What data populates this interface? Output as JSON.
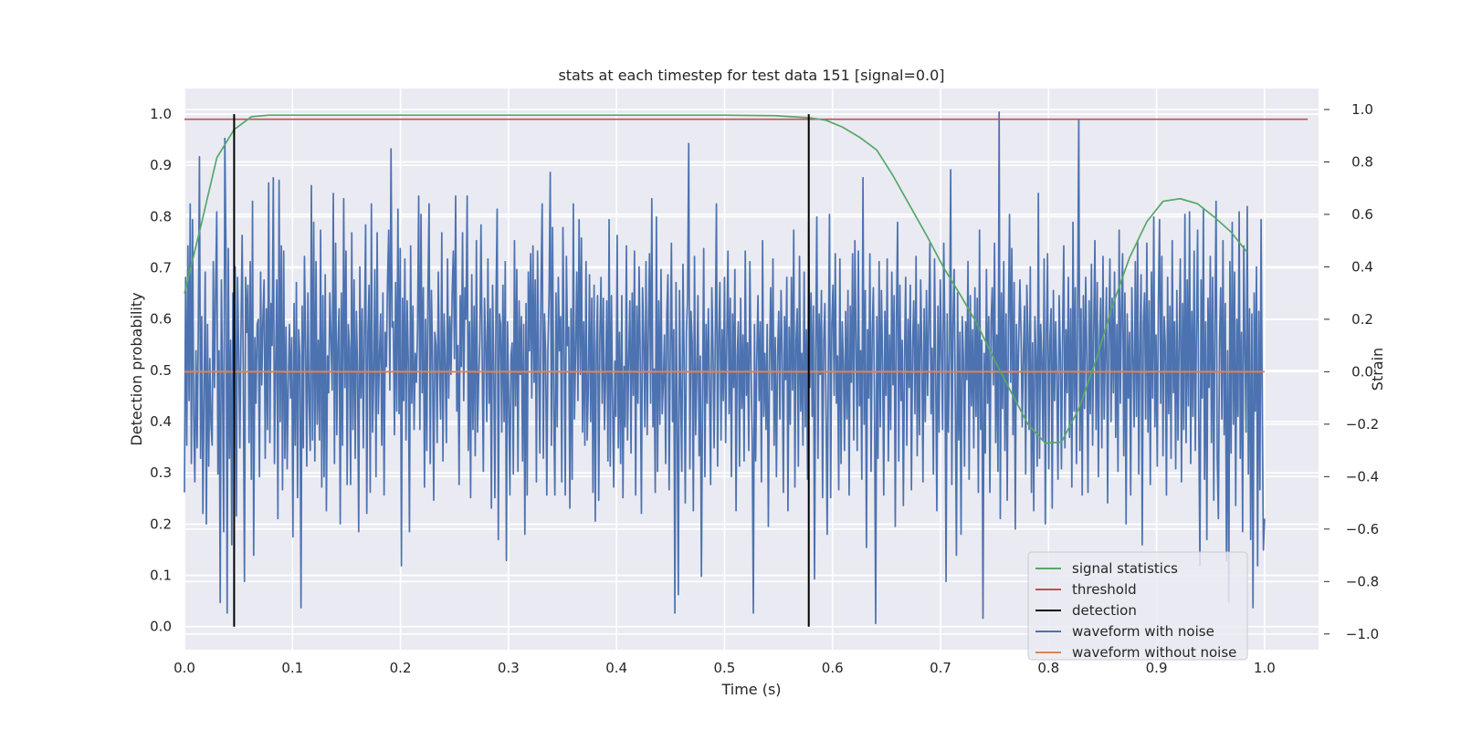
{
  "chart_data": {
    "type": "line",
    "title": "stats at each timestep for test data 151 [signal=0.0]",
    "xlabel": "Time (s)",
    "ylabel": "Detection probability",
    "y2label": "Strain",
    "xlim": [
      0.0,
      1.05
    ],
    "ylim": [
      -0.045,
      1.05
    ],
    "y2lim": [
      -1.06,
      1.08
    ],
    "xticks": [
      "0.0",
      "0.1",
      "0.2",
      "0.3",
      "0.4",
      "0.5",
      "0.6",
      "0.7",
      "0.8",
      "0.9",
      "1.0"
    ],
    "yticks": [
      "0.0",
      "0.1",
      "0.2",
      "0.3",
      "0.4",
      "0.5",
      "0.6",
      "0.7",
      "0.8",
      "0.9",
      "1.0"
    ],
    "y2ticks": [
      "−1.0",
      "−0.8",
      "−0.6",
      "−0.4",
      "−0.2",
      "0.0",
      "0.2",
      "0.4",
      "0.6",
      "0.8",
      "1.0"
    ],
    "grid": true,
    "legend_position": "lower-right",
    "colors": {
      "signal": "#55a868",
      "threshold": "#c44e52",
      "detection": "#000000",
      "noisy": "#4c72b0",
      "clean": "#dd8452",
      "plot_bg": "#eaeaf2",
      "grid": "#ffffff"
    },
    "legend": [
      {
        "label": "signal statistics",
        "color": "#55a868"
      },
      {
        "label": "threshold",
        "color": "#c44e52"
      },
      {
        "label": "detection",
        "color": "#000000"
      },
      {
        "label": "waveform with noise",
        "color": "#4c72b0"
      },
      {
        "label": "waveform without noise",
        "color": "#dd8452"
      }
    ],
    "series": [
      {
        "name": "signal statistics",
        "axis": "left",
        "x": [
          0.0,
          0.015,
          0.03,
          0.046,
          0.062,
          0.078,
          0.1,
          0.2,
          0.3,
          0.4,
          0.5,
          0.547,
          0.562,
          0.578,
          0.594,
          0.609,
          0.625,
          0.641,
          0.656,
          0.672,
          0.688,
          0.703,
          0.719,
          0.734,
          0.75,
          0.766,
          0.781,
          0.797,
          0.812,
          0.828,
          0.844,
          0.859,
          0.875,
          0.891,
          0.906,
          0.922,
          0.938,
          0.953,
          0.969,
          0.984
        ],
        "values": [
          0.65,
          0.78,
          0.915,
          0.97,
          0.995,
          0.998,
          0.998,
          0.998,
          0.998,
          0.998,
          0.998,
          0.997,
          0.995,
          0.993,
          0.988,
          0.975,
          0.955,
          0.93,
          0.88,
          0.82,
          0.76,
          0.7,
          0.645,
          0.59,
          0.52,
          0.455,
          0.395,
          0.358,
          0.36,
          0.425,
          0.52,
          0.625,
          0.72,
          0.79,
          0.83,
          0.835,
          0.825,
          0.8,
          0.77,
          0.73
        ]
      },
      {
        "name": "threshold",
        "axis": "left",
        "x": [
          0.0,
          1.04
        ],
        "values": [
          0.99,
          0.99
        ]
      },
      {
        "name": "detection",
        "axis": "left",
        "segments": [
          [
            0.046,
            0.0,
            1.0
          ],
          [
            0.578,
            0.0,
            1.0
          ]
        ]
      },
      {
        "name": "waveform with noise",
        "axis": "right",
        "x_start": 0.0,
        "x_end": 1.0,
        "values": [
          -0.46,
          0.36,
          -0.28,
          0.48,
          -0.11,
          0.64,
          -0.35,
          0.58,
          -0.16,
          -0.42,
          0.08,
          -0.29,
          0.15,
          0.82,
          -0.33,
          0.21,
          -0.54,
          -0.09,
          0.38,
          -0.58,
          0.18,
          -0.36,
          0.05,
          -0.2,
          -0.28,
          0.42,
          -0.06,
          0.31,
          0.61,
          -0.39,
          0.08,
          -0.88,
          0.35,
          -0.04,
          -0.61,
          0.89,
          0.46,
          -0.92,
          0.47,
          -0.33,
          0.12,
          -0.66,
          0.3,
          0.06,
          0.4,
          -0.55,
          0.36,
          0.08,
          -0.29,
          0.15,
          0.52,
          -0.01,
          -0.8,
          0.36,
          0.15,
          0.33,
          -0.27,
          0.42,
          -0.41,
          0.65,
          -0.7,
          0.13,
          -0.12,
          0.18,
          0.2,
          -0.4,
          0.38,
          -0.05,
          0.2,
          0.35,
          -0.33,
          0.24,
          -0.22,
          0.72,
          -0.27,
          0.26,
          0.1,
          0.74,
          -0.35,
          0.02,
          0.35,
          -0.56,
          0.73,
          -0.19,
          0.48,
          -0.45,
          0.46,
          -0.33,
          0.17,
          -0.37,
          -0.04,
          0.18,
          -0.1,
          0.13,
          -0.63,
          0.26,
          -0.28,
          0.34,
          -0.48,
          0.16,
          0.06,
          -0.9,
          0.25,
          -0.29,
          0.44,
          0.11,
          -0.36,
          0.3,
          -0.12,
          -0.3,
          0.71,
          -0.26,
          0.57,
          -0.34,
          0.42,
          -0.2,
          0.12,
          -0.26,
          0.54,
          -0.44,
          0.29,
          -0.4,
          0.37,
          -0.53,
          0.06,
          -0.08,
          0.3,
          0.12,
          -0.07,
          0.68,
          -0.35,
          0.49,
          -0.24,
          0.1,
          0.24,
          -0.58,
          0.3,
          -0.28,
          0.66,
          -0.06,
          0.46,
          -0.43,
          0.18,
          0.09,
          -0.43,
          0.53,
          -0.22,
          0.35,
          -0.33,
          0.23,
          0.01,
          -0.61,
          0.4,
          -0.1,
          0.24,
          -0.29,
          0.16,
          0.56,
          -0.54,
          0.15,
          0.33,
          -0.46,
          0.64,
          -0.23,
          -0.02,
          0.39,
          -0.4,
          0.53,
          -0.16,
          0.06,
          0.22,
          -0.28,
          0.3,
          -0.47,
          0.15,
          0.02,
          0.35,
          0.54,
          -0.07,
          0.85,
          0.17,
          0.19,
          -0.24,
          0.34,
          -0.15,
          0.62,
          -0.16,
          0.47,
          -0.74,
          0.28,
          -0.11,
          0.43,
          -0.26,
          0.27,
          0.04,
          -0.61,
          0.48,
          -0.12,
          0.25,
          -0.22,
          0.07,
          -0.04,
          0.16,
          0.67,
          -0.22,
          0.6,
          -0.08,
          0.32,
          -0.44,
          0.2,
          -0.3,
          0.3,
          0.64,
          -0.35,
          0.31,
          0.06,
          -0.49,
          0.15,
          0.1,
          -0.27,
          0.38,
          0.02,
          -0.18,
          0.53,
          -0.34,
          0.22,
          0.03,
          -0.27,
          0.43,
          -0.1,
          0.21,
          -0.01,
          0.3,
          0.46,
          0.05,
          0.67,
          -0.15,
          0.1,
          -0.43,
          0.29,
          0.02,
          0.53,
          -0.11,
          0.32,
          0.2,
          0.67,
          -0.3,
          0.19,
          -0.48,
          0.37,
          -0.22,
          0.25,
          -0.32,
          0.5,
          -0.23,
          -0.02,
          0.12,
          0.56,
          0.06,
          -0.38,
          0.28,
          0.11,
          -0.19,
          0.43,
          -0.12,
          0.24,
          -0.52,
          0.33,
          0.04,
          -0.48,
          0.27,
          0.62,
          -0.64,
          0.22,
          0.18,
          -0.23,
          0.33,
          -0.19,
          0.42,
          -0.72,
          0.19,
          -0.1,
          -0.47,
          0.06,
          0.11,
          -0.39,
          0.5,
          -0.13,
          0.39,
          -0.38,
          0.27,
          -0.01,
          0.21,
          -0.34,
          0.18,
          -0.62,
          0.26,
          -0.47,
          0.38,
          0.08,
          0.45,
          -0.1,
          0.48,
          -0.04,
          0.35,
          -0.42,
          0.46,
          0.02,
          -0.31,
          0.34,
          0.64,
          -0.33,
          0.22,
          0.07,
          -0.47,
          0.09,
          0.3,
          0.76,
          -0.28,
          0.55,
          -0.14,
          -0.47,
          0.3,
          -0.21,
          0.36,
          0.08,
          0.21,
          -0.42,
          0.55,
          0.09,
          -0.47,
          0.44,
          0.1,
          0.17,
          -0.52,
          0.24,
          -0.41,
          0.64,
          -0.18,
          0.08,
          0.38,
          -0.11,
          0.58,
          -0.01,
          0.51,
          -0.23,
          0.19,
          -0.28,
          0.42,
          -0.26,
          -0.06,
          0.37,
          -0.19,
          0.28,
          -0.46,
          0.33,
          -0.57,
          0.09,
          0.29,
          -0.49,
          0.13,
          0.36,
          -0.12,
          0.28,
          -0.22,
          -0.02,
          0.27,
          -0.34,
          0.58,
          -0.36,
          0.29,
          -0.11,
          -0.44,
          0.04,
          -0.17,
          0.52,
          -0.29,
          0.15,
          -0.35,
          0.29,
          -0.48,
          0.02,
          -0.21,
          0.48,
          -0.26,
          0.05,
          0.27,
          -0.31,
          0.3,
          -0.09,
          0.46,
          -0.47,
          0.25,
          -0.12,
          0.4,
          0.04,
          -0.54,
          0.32,
          0.13,
          -0.21,
          0.42,
          -0.24,
          0.15,
          0.45,
          -0.12,
          0.66,
          -0.21,
          0.01,
          -0.46,
          0.59,
          -0.38,
          0.27,
          -0.2,
          0.39,
          -0.16,
          -0.04,
          0.14,
          -0.35,
          0.22,
          0.37,
          -0.45,
          0.06,
          0.49,
          -0.19,
          0.16,
          -0.92,
          0.34,
          -0.18,
          -0.85,
          0.31,
          -0.08,
          -0.38,
          0.41,
          0.05,
          -0.5,
          0.15,
          0.28,
          0.87,
          -0.37,
          0.23,
          0.11,
          -0.53,
          0.44,
          -0.24,
          -0.02,
          0.29,
          -0.32,
          0.06,
          -0.78,
          -0.07,
          0.47,
          -0.4,
          0.18,
          -0.12,
          0.24,
          -0.05,
          -0.43,
          0.32,
          0.09,
          -0.29,
          0.12,
          0.64,
          -0.36,
          0.13,
          0.34,
          -0.26,
          0.16,
          -0.11,
          0.36,
          -0.27,
          0.13,
          0.46,
          -0.16,
          0.28,
          -0.4,
          0.22,
          -0.06,
          0.39,
          -0.53,
          0.06,
          0.19,
          -0.36,
          0.28,
          -0.14,
          0.14,
          -0.34,
          0.46,
          -0.09,
          0.11,
          -0.3,
          0.42,
          0.02,
          -0.25,
          -0.92,
          0.18,
          -0.34,
          0.05,
          0.29,
          -0.11,
          0.19,
          -0.42,
          0.5,
          -0.17,
          0.07,
          -0.22,
          0.18,
          -0.59,
          0.03,
          0.32,
          -0.07,
          0.43,
          -0.28,
          0.13,
          -0.4,
          0.06,
          0.23,
          -0.18,
          0.31,
          0.06,
          -0.46,
          0.21,
          -0.03,
          0.36,
          -0.53,
          0.17,
          -0.2,
          0.36,
          -0.07,
          0.54,
          -0.44,
          0.12,
          0.24,
          -0.36,
          0.44,
          -0.15,
          0.07,
          -0.28,
          0.38,
          -0.21,
          0.16,
          -0.41,
          0.57,
          -0.06,
          0.3,
          -0.17,
          0.25,
          -0.79,
          0.08,
          0.59,
          -0.33,
          0.22,
          -0.01,
          0.31,
          -0.48,
          0.12,
          0.26,
          -0.15,
          -0.62,
          0.04,
          0.6,
          -0.48,
          0.18,
          0.33,
          -0.09,
          0.45,
          -0.12,
          0.06,
          -0.45,
          0.43,
          -0.35,
          0.19,
          0.04,
          -0.3,
          0.23,
          -0.18,
          0.31,
          -0.47,
          0.25,
          -0.04,
          0.45,
          -0.26,
          0.5,
          0.12,
          -0.3,
          0.46,
          -0.13,
          0.08,
          -0.41,
          0.74,
          -0.2,
          0.31,
          -0.67,
          0.16,
          -0.1,
          0.45,
          -0.38,
          0.15,
          0.32,
          -0.12,
          -0.96,
          0.21,
          -0.33,
          0.42,
          -0.21,
          0.31,
          0.04,
          -0.47,
          0.23,
          -0.09,
          0.43,
          -0.34,
          0.14,
          -0.22,
          0.38,
          -0.05,
          0.29,
          -0.59,
          0.2,
          0.57,
          -0.34,
          0.33,
          -0.11,
          0.12,
          -0.51,
          0.05,
          0.36,
          -0.28,
          0.2,
          -0.06,
          0.33,
          -0.45,
          0.1,
          0.27,
          -0.16,
          0.44,
          -0.32,
          0.18,
          -0.24,
          0.35,
          0.07,
          -0.42,
          0.24,
          -0.19,
          0.31,
          -0.09,
          0.19,
          0.49,
          -0.16,
          0.09,
          -0.39,
          0.43,
          0.02,
          -0.53,
          0.25,
          -0.23,
          0.35,
          0.08,
          -0.22,
          0.49,
          0.14,
          -0.8,
          0.22,
          -0.23,
          0.08,
          0.77,
          -0.43,
          0.18,
          0.39,
          -0.11,
          -0.7,
          0.3,
          -0.26,
          0.15,
          -0.62,
          0.21,
          0.06,
          -0.36,
          0.19,
          -0.03,
          0.42,
          -0.41,
          0.29,
          -0.13,
          0.16,
          -0.29,
          0.32,
          -0.17,
          0.28,
          -0.46,
          0.54,
          -0.22,
          0.12,
          -0.94,
          0.07,
          -0.31,
          0.39,
          -0.12,
          0.21,
          -0.46,
          0.19,
          0.32,
          -0.05,
          0.49,
          -0.27,
          0.14,
          -0.38,
          0.99,
          -0.56,
          0.3,
          -0.14,
          0.42,
          -0.3,
          0.22,
          -0.49,
          0.16,
          0.6,
          -0.04,
          0.47,
          -0.24,
          0.34,
          -0.6,
          0.18,
          -0.12,
          0.12,
          0.35,
          0.14,
          -0.21,
          0.07,
          0.25,
          -0.39,
          0.33,
          0.14,
          -0.22,
          0.4,
          -0.46,
          0.11,
          -0.53,
          0.21,
          0.05,
          -0.36,
          0.68,
          -0.33,
          0.18,
          0.05,
          -0.26,
          0.43,
          -0.58,
          0.16,
          0.45,
          -0.37,
          0.12,
          0.24,
          -0.52,
          0.31,
          -0.11,
          0.19,
          -0.03,
          -0.41,
          0.29,
          0.07,
          -0.37,
          0.15,
          0.48,
          -0.29,
          0.16,
          -0.08,
          0.36,
          -0.25,
          0.24,
          -0.44,
          0.57,
          -0.15,
          0.32,
          -0.35,
          0.22,
          0.96,
          -0.3,
          0.24,
          -0.47,
          0.29,
          -0.14,
          0.36,
          0.05,
          -0.46,
          0.27,
          -0.16,
          0.41,
          -0.28,
          0.17,
          0.5,
          -0.22,
          0.34,
          -0.4,
          0.12,
          0.28,
          -0.29,
          0.44,
          -0.18,
          0.08,
          0.32,
          -0.5,
          0.12,
          0.43,
          -0.19,
          0.28,
          -0.08,
          0.38,
          -0.25,
          0.18,
          -0.38,
          0.54,
          -0.12,
          0.24,
          0.45,
          -0.32,
          0.3,
          -0.58,
          0.22,
          -0.1,
          0.15,
          -0.47,
          0.32,
          0.05,
          -0.21,
          0.42,
          -0.17,
          0.5,
          -0.39,
          0.11,
          0.37,
          -0.66,
          0.19,
          0.3,
          -0.18,
          0.49,
          -0.23,
          0.27,
          -0.43,
          0.38,
          -0.1,
          0.59,
          -0.21,
          0.14,
          -0.36,
          0.27,
          0.58,
          -0.12,
          0.44,
          -0.32,
          0.21,
          0.1,
          -0.47,
          0.36,
          -0.16,
          0.25,
          -0.33,
          0.5,
          -0.08,
          0.19,
          -0.37,
          0.31,
          -0.26,
          0.12,
          0.43,
          -0.42,
          0.26,
          -0.22,
          0.6,
          -0.27,
          0.35,
          -0.13,
          0.61,
          -0.35,
          0.23,
          -0.17,
          0.46,
          -0.3,
          0.16,
          0.54,
          -0.2,
          -0.74,
          0.35,
          -0.1,
          0.62,
          -0.41,
          0.19,
          -0.64,
          0.28,
          -0.06,
          0.44,
          -0.27,
          0.36,
          -0.49,
          0.2,
          0.65,
          -0.33,
          -0.56,
          0.12,
          0.32,
          -0.18,
          0.5,
          -0.24,
          0.26,
          -0.72,
          0.08,
          -0.88,
          0.42,
          -0.31,
          0.57,
          -0.2,
          0.38,
          -0.51,
          0.2,
          -0.17,
          0.61,
          -0.33,
          0.15,
          -0.61,
          0.48,
          0.09,
          -0.23,
          0.63,
          -0.39,
          0.24,
          -0.64,
          0.22,
          -0.9,
          0.3,
          -0.15,
          0.4,
          -0.74,
          0.23,
          -0.45,
          0.58,
          -0.12,
          -0.68,
          -0.56
        ]
      },
      {
        "name": "waveform without noise",
        "axis": "right",
        "x": [
          0.0,
          1.0
        ],
        "values": [
          0.0,
          0.0
        ]
      }
    ]
  }
}
